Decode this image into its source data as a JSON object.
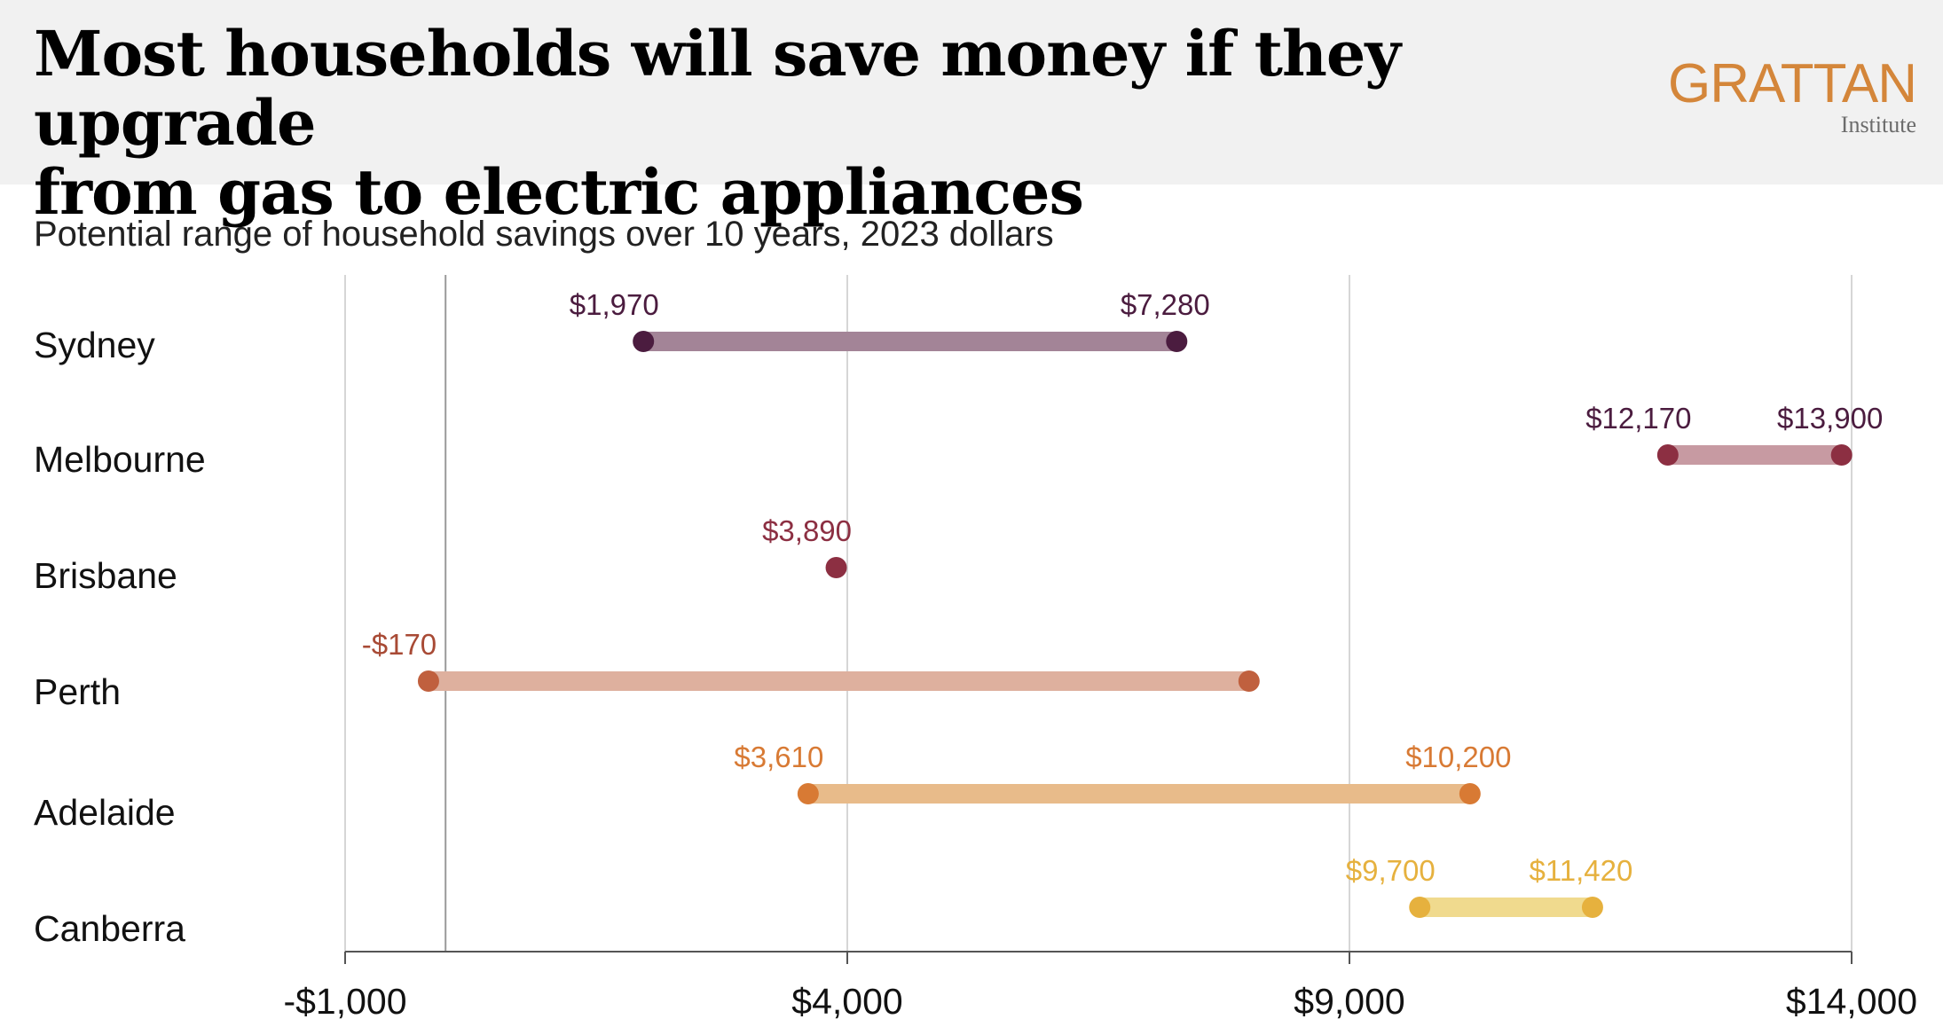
{
  "header": {
    "title_line1": "Most households will save money if they upgrade",
    "title_line2": "from gas to electric appliances",
    "logo_word": "GRATTAN",
    "logo_sub": "Institute"
  },
  "chart_data": {
    "type": "range-dot",
    "subtitle": "Potential range of household savings over 10 years, 2023 dollars",
    "xlim": [
      -1000,
      14000
    ],
    "xticks": [
      -1000,
      4000,
      9000,
      14000
    ],
    "xtick_labels": [
      "-$1,000",
      "$4,000",
      "$9,000",
      "$14,000"
    ],
    "reference_line": 0,
    "grid": true,
    "rows": [
      {
        "category": "Sydney",
        "low": 1970,
        "high": 7280,
        "low_label": "$1,970",
        "high_label": "$7,280",
        "dot_color": "#4b1c3f",
        "bar_color": "#a38497",
        "label_color": "#4b1c3f"
      },
      {
        "category": "Melbourne",
        "low": 12170,
        "high": 13900,
        "low_label": "$12,170",
        "high_label": "$13,900",
        "dot_color": "#8c2f42",
        "bar_color": "#c79aa2",
        "label_color": "#4b1c3f"
      },
      {
        "category": "Brisbane",
        "low": 3890,
        "high": 3890,
        "low_label": "$3,890",
        "high_label": "",
        "dot_color": "#8c2f42",
        "bar_color": "#c79aa2",
        "label_color": "#8c2f42"
      },
      {
        "category": "Perth",
        "low": -170,
        "high": 8000,
        "low_label": "-$170",
        "high_label": "",
        "dot_color": "#c0603e",
        "bar_color": "#deb09e",
        "label_color": "#a84a35"
      },
      {
        "category": "Adelaide",
        "low": 3610,
        "high": 10200,
        "low_label": "$3,610",
        "high_label": "$10,200",
        "dot_color": "#d87a34",
        "bar_color": "#e8bb8a",
        "label_color": "#d87a34"
      },
      {
        "category": "Canberra",
        "low": 9700,
        "high": 11420,
        "low_label": "$9,700",
        "high_label": "$11,420",
        "dot_color": "#e6b13e",
        "bar_color": "#f0da8e",
        "label_color": "#e6b13e"
      }
    ]
  }
}
